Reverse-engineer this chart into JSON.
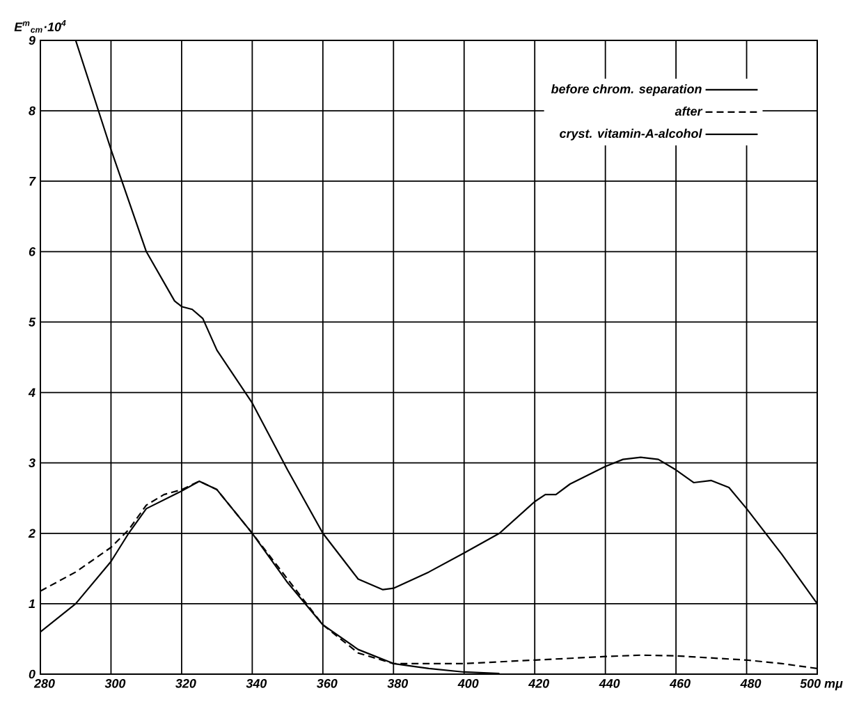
{
  "chart_data": {
    "type": "line",
    "ylabel": "E$^{m}$$_{cm}$·10$^{4}$",
    "xlim": [
      280,
      500
    ],
    "ylim": [
      0,
      9
    ],
    "xticks": [
      280,
      300,
      320,
      340,
      360,
      380,
      400,
      420,
      440,
      460,
      480,
      {
        "value": 500,
        "label": "500 mμ"
      }
    ],
    "yticks": [
      0,
      1,
      2,
      3,
      4,
      5,
      6,
      7,
      8,
      9
    ],
    "grid": true,
    "legend": "top right",
    "series": [
      {
        "name": "before chrom. separation",
        "color": "#000000",
        "line_style": "solid",
        "x": [
          290,
          300,
          310,
          318,
          320,
          323,
          326,
          330,
          340,
          350,
          360,
          370,
          377,
          380,
          390,
          400,
          410,
          420,
          423,
          426,
          430,
          440,
          445,
          450,
          455,
          460,
          465,
          470,
          475,
          480,
          490,
          500
        ],
        "values": [
          9,
          7.45,
          6.0,
          5.3,
          5.22,
          5.18,
          5.05,
          4.6,
          3.85,
          2.9,
          2.0,
          1.35,
          1.2,
          1.22,
          1.45,
          1.72,
          2.0,
          2.45,
          2.55,
          2.55,
          2.7,
          2.95,
          3.05,
          3.08,
          3.05,
          2.9,
          2.72,
          2.75,
          2.65,
          2.35,
          1.7,
          1.0
        ]
      },
      {
        "name": "after",
        "color": "#000000",
        "line_style": "dashed",
        "x": [
          280,
          290,
          300,
          305,
          310,
          315,
          320,
          325,
          330,
          340,
          350,
          360,
          370,
          380,
          400,
          420,
          440,
          450,
          460,
          480,
          490,
          500
        ],
        "values": [
          1.18,
          1.45,
          1.8,
          2.05,
          2.4,
          2.55,
          2.62,
          2.74,
          2.62,
          2.0,
          1.35,
          0.7,
          0.3,
          0.15,
          0.15,
          0.2,
          0.25,
          0.27,
          0.26,
          0.2,
          0.15,
          0.08
        ]
      },
      {
        "name": "cryst. vitamin-A-alcohol",
        "color": "#000000",
        "line_style": "solid",
        "x": [
          280,
          290,
          300,
          305,
          310,
          320,
          325,
          330,
          340,
          350,
          360,
          370,
          380,
          390,
          400,
          410
        ],
        "values": [
          0.6,
          1.0,
          1.6,
          2.0,
          2.35,
          2.6,
          2.74,
          2.62,
          2.0,
          1.3,
          0.7,
          0.35,
          0.15,
          0.08,
          0.03,
          0.01
        ]
      }
    ]
  }
}
